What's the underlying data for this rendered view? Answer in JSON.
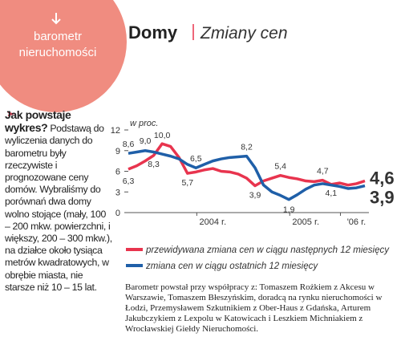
{
  "badge": "barometr nieruchomości",
  "sidebar": {
    "heading": "Jak powstaje wykres?",
    "body": "Podstawą do wyliczenia danych do barometru były rzeczywiste i prognozowane ceny domów. Wybraliśmy do porównań dwa domy wolno stojące (mały, 100 – 200 mkw. powierzchni, i większy, 200 – 300 mkw.), na działce około tysiąca metrów kwadratowych, w obrębie miasta, nie starsze niż 10 – 15 lat."
  },
  "footnote": "Barometr powstał przy współpracy z: Tomaszem Rożkiem z Akcesu w Warszawie, Tomaszem Błeszyńskim, doradcą na rynku nieruchomości w Łodzi, Przemysławem Szkutnikiem z Ober-Haus z Gdańska, Arturem Jakubczykiem z Lexpolu w Katowicach i Leszkiem Michniakiem z Wrocławskiej Giełdy Nieruchomości.",
  "chart_data": {
    "type": "line",
    "title": "Domy",
    "subtitle": "Zmiany cen",
    "y_label": "w proc.",
    "categories": [
      null,
      null,
      null,
      null,
      null,
      null,
      null,
      null,
      null,
      null,
      "2004 r.",
      null,
      null,
      null,
      null,
      null,
      null,
      null,
      null,
      null,
      null,
      "2005 r.",
      null,
      null,
      null,
      null,
      null,
      "'06 r.",
      null
    ],
    "ylim": [
      0,
      12
    ],
    "yticks": [
      0,
      3,
      6,
      9,
      12
    ],
    "series": [
      {
        "name": "przewidywana zmiana cen w ciągu następnych 12 miesięcy",
        "color": "#e8344e",
        "values": [
          6.3,
          6.8,
          7.5,
          8.3,
          10.0,
          9.6,
          8.0,
          5.7,
          5.9,
          6.2,
          6.4,
          6.0,
          5.9,
          5.6,
          5.0,
          3.9,
          4.6,
          5.0,
          5.4,
          5.1,
          4.9,
          4.6,
          4.5,
          4.7,
          4.1,
          4.3,
          4.0,
          4.2,
          4.6
        ],
        "value_labels": [
          "6,3",
          null,
          null,
          "8,3",
          "10,0",
          null,
          null,
          "5,7",
          null,
          null,
          null,
          null,
          null,
          null,
          null,
          "3,9",
          null,
          null,
          "5,4",
          null,
          null,
          null,
          null,
          "4,7",
          "4,1",
          null,
          null,
          null,
          "4,6"
        ]
      },
      {
        "name": "zmiana cen w ciągu ostatnich 12 miesięcy",
        "color": "#1f5fa8",
        "values": [
          8.6,
          8.8,
          9.0,
          8.8,
          8.5,
          8.2,
          7.8,
          7.0,
          6.5,
          7.0,
          7.5,
          7.8,
          8.0,
          8.1,
          8.2,
          6.5,
          4.0,
          3.0,
          2.5,
          1.9,
          2.6,
          3.4,
          4.0,
          4.2,
          4.0,
          3.8,
          3.5,
          3.6,
          3.9
        ],
        "value_labels": [
          "8,6",
          null,
          "9,0",
          null,
          null,
          null,
          null,
          null,
          "6,5",
          null,
          null,
          null,
          null,
          null,
          "8,2",
          null,
          null,
          null,
          null,
          "1,9",
          null,
          null,
          null,
          null,
          null,
          null,
          null,
          null,
          "3,9"
        ]
      }
    ]
  }
}
